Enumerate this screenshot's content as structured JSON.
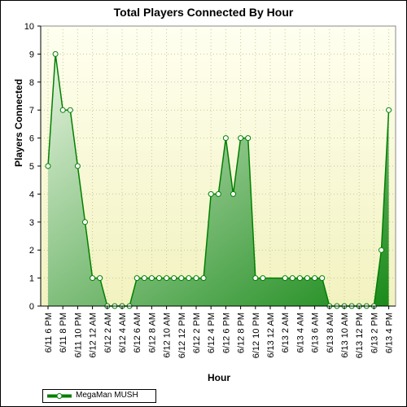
{
  "chart_data": {
    "type": "area",
    "title": "Total Players Connected By Hour",
    "xlabel": "Hour",
    "ylabel": "Players Connected",
    "ylim": [
      0,
      10
    ],
    "yticks": [
      0,
      1,
      2,
      3,
      4,
      5,
      6,
      7,
      8,
      9,
      10
    ],
    "grid": true,
    "legend_position": "bottom-left",
    "colors": {
      "line": "#008000",
      "fill_dark": "#1a8a1a",
      "fill_light": "#e8f4e0",
      "plot_bg_top": "#fffff0",
      "plot_bg_bottom": "#f2f2c0"
    },
    "x_tick_labels": [
      "6/11 6 PM",
      "6/11 8 PM",
      "6/11 10 PM",
      "6/12 12 AM",
      "6/12 2 AM",
      "6/12 4 AM",
      "6/12 6 AM",
      "6/12 8 AM",
      "6/12 10 AM",
      "6/12 12 PM",
      "6/12 2 PM",
      "6/12 4 PM",
      "6/12 6 PM",
      "6/12 8 PM",
      "6/12 10 PM",
      "6/13 12 AM",
      "6/13 2 AM",
      "6/13 4 AM",
      "6/13 6 AM",
      "6/13 8 AM",
      "6/13 10 AM",
      "6/13 12 PM",
      "6/13 2 PM",
      "6/13 4 PM"
    ],
    "series": [
      {
        "name": "MegaMan MUSH",
        "values": [
          5,
          9,
          7,
          7,
          5,
          3,
          1,
          1,
          0,
          0,
          0,
          0,
          1,
          1,
          1,
          1,
          1,
          1,
          1,
          1,
          1,
          1,
          4,
          4,
          6,
          4,
          6,
          6,
          1,
          1,
          null,
          null,
          1,
          1,
          1,
          1,
          1,
          1,
          0,
          0,
          0,
          0,
          0,
          0,
          0,
          2,
          7
        ]
      }
    ]
  }
}
